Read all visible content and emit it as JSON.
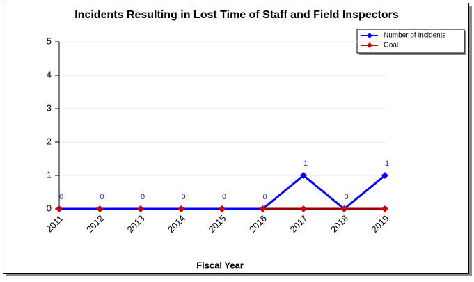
{
  "chart_data": {
    "type": "line",
    "title": "Incidents Resulting in Lost Time of Staff and Field Inspectors",
    "x_label": "Fiscal Year",
    "categories": [
      "2011",
      "2012",
      "2013",
      "2014",
      "2015",
      "2016",
      "2017",
      "2018",
      "2019"
    ],
    "series": [
      {
        "name": "Number of Incidents",
        "color": "#0000ff",
        "values": [
          0,
          0,
          0,
          0,
          0,
          0,
          1,
          0,
          1
        ],
        "data_labels": true
      },
      {
        "name": "Goal",
        "color": "#cc0000",
        "values": [
          0,
          0,
          0,
          0,
          0,
          0,
          0,
          0,
          0
        ],
        "data_labels": false
      }
    ],
    "ylim": [
      0,
      5
    ],
    "yticks": [
      0,
      1,
      2,
      3,
      4,
      5
    ],
    "grid": true,
    "legend": "upper right"
  }
}
